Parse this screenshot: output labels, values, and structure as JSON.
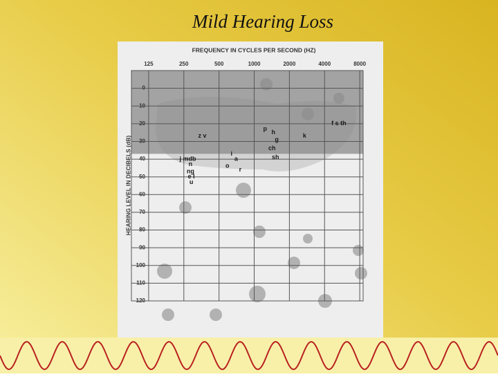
{
  "chart_data": {
    "type": "scatter",
    "title": "Mild Hearing Loss",
    "x_label": "FREQUENCY IN CYCLES PER SECOND (HZ)",
    "y_label": "HEARING LEVEL IN DECIBELS (dB)",
    "log_x": true,
    "y_inverted": true,
    "grid": true,
    "xlim": [
      89,
      8550
    ],
    "xticks": [
      125,
      250,
      500,
      1000,
      2000,
      4000,
      8000
    ],
    "ylim": [
      -10,
      120
    ],
    "yticks": [
      0,
      10,
      20,
      30,
      40,
      50,
      60,
      70,
      80,
      90,
      100,
      110,
      120
    ],
    "shaded_range": [
      -10,
      37
    ],
    "shade_color": "#8a8a8a",
    "color": "#1a1a1a",
    "points": {
      "labels": [
        "z v",
        "j mdb",
        "n",
        "ng",
        "e l",
        "u",
        "i",
        "a",
        "o",
        "r",
        "p",
        "h",
        "g",
        "ch",
        "sh",
        "k",
        "f s th"
      ],
      "x": [
        360,
        270,
        285,
        285,
        290,
        290,
        640,
        700,
        590,
        760,
        1240,
        1460,
        1560,
        1420,
        1520,
        2700,
        5300
      ],
      "values": [
        27,
        40,
        43,
        47,
        50,
        53,
        37,
        40,
        44,
        46,
        23,
        25,
        29,
        34,
        39,
        27,
        20
      ]
    }
  }
}
